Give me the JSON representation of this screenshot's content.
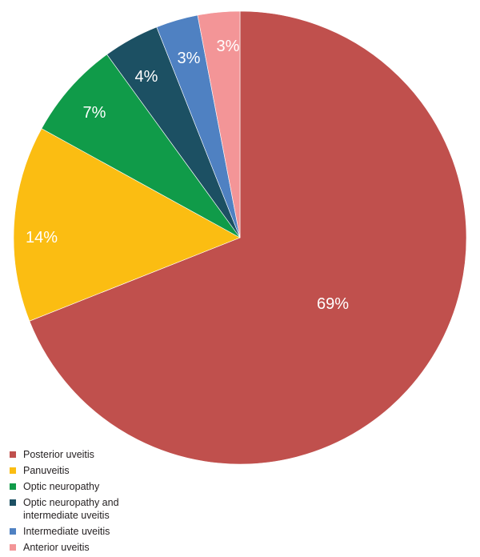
{
  "chart_data": {
    "type": "pie",
    "categories": [
      "Posterior uveitis",
      "Panuveitis",
      "Optic neuropathy",
      "Optic neuropathy and intermediate uveitis",
      "Intermediate uveitis",
      "Anterior uveitis"
    ],
    "values": [
      69,
      14,
      7,
      4,
      3,
      3
    ],
    "data_labels": [
      "69%",
      "14%",
      "7%",
      "4%",
      "3%",
      "3%"
    ],
    "colors": [
      "#c0504d",
      "#fbbd12",
      "#109b49",
      "#1c5063",
      "#4f81c2",
      "#f39597"
    ],
    "start_angle_deg": 0,
    "direction": "clockwise",
    "legend_position": "bottom-left",
    "title": ""
  }
}
